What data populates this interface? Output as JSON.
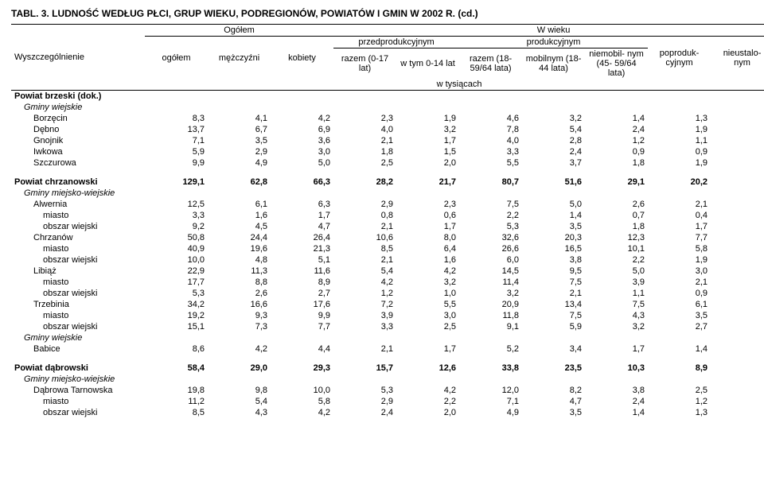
{
  "title": "TABL. 3. LUDNOŚĆ WEDŁUG PŁCI, GRUP WIEKU, PODREGIONÓW, POWIATÓW I GMIN W 2002 R. (cd.)",
  "headers": {
    "row_label": "Wyszczególnienie",
    "ogolem_group": "Ogółem",
    "ogolem": "ogółem",
    "men": "mężczyźni",
    "women": "kobiety",
    "wwieku": "W wieku",
    "pre": "przedprodukcyjnym",
    "prod": "produkcyjnym",
    "razem_pre": "razem\n(0-17 lat)",
    "wtym": "w tym\n0-14 lat",
    "razem_prod": "razem\n(18-59/64\nlata)",
    "mobil": "mobilnym\n(18-44\nlata)",
    "niemobil": "niemobil-\nnym (45-\n59/64 lata)",
    "poproduk": "poproduk-\ncyjnym",
    "nieustal": "nieustalo-\nnym",
    "tys": "w tysiącach"
  },
  "rows": [
    {
      "label": "Powiat brzeski (dok.)",
      "style": "bold",
      "indent": 0,
      "vals": [
        "",
        "",
        "",
        "",
        "",
        "",
        "",
        "",
        "",
        ""
      ]
    },
    {
      "label": "Gminy wiejskie",
      "style": "italic",
      "indent": 1,
      "vals": [
        "",
        "",
        "",
        "",
        "",
        "",
        "",
        "",
        "",
        ""
      ]
    },
    {
      "label": "Borzęcin",
      "indent": 2,
      "vals": [
        "8,3",
        "4,1",
        "4,2",
        "2,3",
        "1,9",
        "4,6",
        "3,2",
        "1,4",
        "1,3",
        "-"
      ]
    },
    {
      "label": "Dębno",
      "indent": 2,
      "vals": [
        "13,7",
        "6,7",
        "6,9",
        "4,0",
        "3,2",
        "7,8",
        "5,4",
        "2,4",
        "1,9",
        "-"
      ]
    },
    {
      "label": "Gnojnik",
      "indent": 2,
      "vals": [
        "7,1",
        "3,5",
        "3,6",
        "2,1",
        "1,7",
        "4,0",
        "2,8",
        "1,2",
        "1,1",
        "-"
      ]
    },
    {
      "label": "Iwkowa",
      "indent": 2,
      "vals": [
        "5,9",
        "2,9",
        "3,0",
        "1,8",
        "1,5",
        "3,3",
        "2,4",
        "0,9",
        "0,9",
        "-"
      ]
    },
    {
      "label": "Szczurowa",
      "indent": 2,
      "vals": [
        "9,9",
        "4,9",
        "5,0",
        "2,5",
        "2,0",
        "5,5",
        "3,7",
        "1,8",
        "1,9",
        "-"
      ]
    },
    {
      "spacer": true
    },
    {
      "label": "Powiat chrzanowski",
      "style": "bold",
      "indent": 0,
      "vals": [
        "129,1",
        "62,8",
        "66,3",
        "28,2",
        "21,7",
        "80,7",
        "51,6",
        "29,1",
        "20,2",
        "-"
      ]
    },
    {
      "label": "Gminy miejsko-wiejskie",
      "style": "italic",
      "indent": 1,
      "vals": [
        "",
        "",
        "",
        "",
        "",
        "",
        "",
        "",
        "",
        ""
      ]
    },
    {
      "label": "Alwernia",
      "indent": 2,
      "vals": [
        "12,5",
        "6,1",
        "6,3",
        "2,9",
        "2,3",
        "7,5",
        "5,0",
        "2,6",
        "2,1",
        "-"
      ]
    },
    {
      "label": "miasto",
      "indent": 3,
      "vals": [
        "3,3",
        "1,6",
        "1,7",
        "0,8",
        "0,6",
        "2,2",
        "1,4",
        "0,7",
        "0,4",
        "-"
      ]
    },
    {
      "label": "obszar wiejski",
      "indent": 3,
      "vals": [
        "9,2",
        "4,5",
        "4,7",
        "2,1",
        "1,7",
        "5,3",
        "3,5",
        "1,8",
        "1,7",
        "-"
      ]
    },
    {
      "label": "Chrzanów",
      "indent": 2,
      "vals": [
        "50,8",
        "24,4",
        "26,4",
        "10,6",
        "8,0",
        "32,6",
        "20,3",
        "12,3",
        "7,7",
        "-"
      ]
    },
    {
      "label": "miasto",
      "indent": 3,
      "vals": [
        "40,9",
        "19,6",
        "21,3",
        "8,5",
        "6,4",
        "26,6",
        "16,5",
        "10,1",
        "5,8",
        "-"
      ]
    },
    {
      "label": "obszar wiejski",
      "indent": 3,
      "vals": [
        "10,0",
        "4,8",
        "5,1",
        "2,1",
        "1,6",
        "6,0",
        "3,8",
        "2,2",
        "1,9",
        "-"
      ]
    },
    {
      "label": "Libiąż",
      "indent": 2,
      "vals": [
        "22,9",
        "11,3",
        "11,6",
        "5,4",
        "4,2",
        "14,5",
        "9,5",
        "5,0",
        "3,0",
        "-"
      ]
    },
    {
      "label": "miasto",
      "indent": 3,
      "vals": [
        "17,7",
        "8,8",
        "8,9",
        "4,2",
        "3,2",
        "11,4",
        "7,5",
        "3,9",
        "2,1",
        "-"
      ]
    },
    {
      "label": "obszar wiejski",
      "indent": 3,
      "vals": [
        "5,3",
        "2,6",
        "2,7",
        "1,2",
        "1,0",
        "3,2",
        "2,1",
        "1,1",
        "0,9",
        "-"
      ]
    },
    {
      "label": "Trzebinia",
      "indent": 2,
      "vals": [
        "34,2",
        "16,6",
        "17,6",
        "7,2",
        "5,5",
        "20,9",
        "13,4",
        "7,5",
        "6,1",
        "-"
      ]
    },
    {
      "label": "miasto",
      "indent": 3,
      "vals": [
        "19,2",
        "9,3",
        "9,9",
        "3,9",
        "3,0",
        "11,8",
        "7,5",
        "4,3",
        "3,5",
        "-"
      ]
    },
    {
      "label": "obszar wiejski",
      "indent": 3,
      "vals": [
        "15,1",
        "7,3",
        "7,7",
        "3,3",
        "2,5",
        "9,1",
        "5,9",
        "3,2",
        "2,7",
        "-"
      ]
    },
    {
      "label": "Gminy wiejskie",
      "style": "italic",
      "indent": 1,
      "vals": [
        "",
        "",
        "",
        "",
        "",
        "",
        "",
        "",
        "",
        ""
      ]
    },
    {
      "label": "Babice",
      "indent": 2,
      "vals": [
        "8,6",
        "4,2",
        "4,4",
        "2,1",
        "1,7",
        "5,2",
        "3,4",
        "1,7",
        "1,4",
        "-"
      ]
    },
    {
      "spacer": true
    },
    {
      "label": "Powiat dąbrowski",
      "style": "bold",
      "indent": 0,
      "vals": [
        "58,4",
        "29,0",
        "29,3",
        "15,7",
        "12,6",
        "33,8",
        "23,5",
        "10,3",
        "8,9",
        "-"
      ]
    },
    {
      "label": "Gminy miejsko-wiejskie",
      "style": "italic",
      "indent": 1,
      "vals": [
        "",
        "",
        "",
        "",
        "",
        "",
        "",
        "",
        "",
        ""
      ]
    },
    {
      "label": "Dąbrowa Tarnowska",
      "indent": 2,
      "vals": [
        "19,8",
        "9,8",
        "10,0",
        "5,3",
        "4,2",
        "12,0",
        "8,2",
        "3,8",
        "2,5",
        "-"
      ]
    },
    {
      "label": "miasto",
      "indent": 3,
      "vals": [
        "11,2",
        "5,4",
        "5,8",
        "2,9",
        "2,2",
        "7,1",
        "4,7",
        "2,4",
        "1,2",
        "-"
      ]
    },
    {
      "label": "obszar wiejski",
      "indent": 3,
      "vals": [
        "8,5",
        "4,3",
        "4,2",
        "2,4",
        "2,0",
        "4,9",
        "3,5",
        "1,4",
        "1,3",
        "-"
      ]
    }
  ]
}
